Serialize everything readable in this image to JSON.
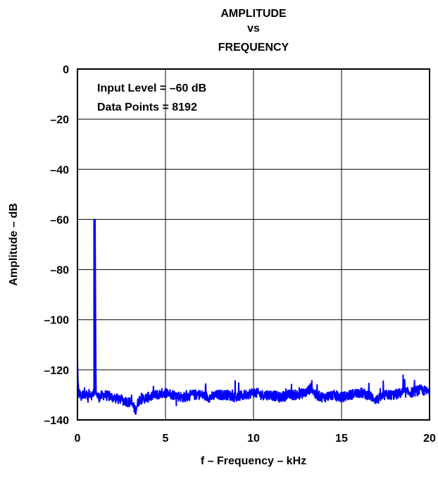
{
  "chart_data": {
    "type": "line",
    "title_lines": [
      "AMPLITUDE",
      "vs",
      "FREQUENCY"
    ],
    "xlabel": "f – Frequency – kHz",
    "ylabel": "Amplitude – dB",
    "xlim": [
      0,
      20
    ],
    "ylim": [
      -140,
      0
    ],
    "x_ticks": [
      0,
      5,
      10,
      15,
      20
    ],
    "x_tick_labels": [
      "0",
      "5",
      "10",
      "15",
      "20"
    ],
    "y_ticks": [
      0,
      -20,
      -40,
      -60,
      -80,
      -100,
      -120,
      -140
    ],
    "y_tick_labels": [
      "0",
      "–20",
      "–40",
      "–60",
      "–80",
      "–100",
      "–120",
      "–140"
    ],
    "grid": true,
    "annotations": [
      "Input Level = –60 dB",
      "Data Points = 8192"
    ],
    "series_color": "#0000ff",
    "series": [
      {
        "x": [
          0.0,
          0.02,
          0.05,
          0.1,
          0.15,
          0.2,
          0.3,
          0.4,
          0.5,
          0.6,
          0.7,
          0.8,
          0.9,
          0.95,
          1.0,
          1.05,
          1.1,
          1.2,
          1.5,
          2.0,
          2.5,
          3.0,
          3.3,
          3.5,
          4.0,
          4.5,
          5.0,
          5.5,
          6.0,
          6.5,
          7.0,
          7.5,
          8.0,
          8.5,
          9.0,
          9.5,
          10.0,
          10.5,
          11.0,
          11.5,
          12.0,
          12.5,
          13.0,
          13.3,
          13.5,
          14.0,
          14.5,
          15.0,
          15.5,
          16.0,
          16.5,
          17.0,
          17.5,
          18.0,
          18.5,
          19.0,
          19.5,
          20.0
        ],
        "y": [
          -116,
          -124,
          -128,
          -130,
          -129,
          -131,
          -130,
          -129,
          -130,
          -131,
          -129,
          -130,
          -130,
          -128,
          -60,
          -128,
          -130,
          -131,
          -130,
          -131,
          -132,
          -133,
          -136,
          -132,
          -131,
          -130,
          -129,
          -130,
          -131,
          -130,
          -130,
          -131,
          -130,
          -130,
          -131,
          -130,
          -129,
          -130,
          -130,
          -131,
          -130,
          -130,
          -129,
          -127,
          -130,
          -131,
          -130,
          -131,
          -130,
          -129,
          -130,
          -132,
          -130,
          -130,
          -129,
          -129,
          -128,
          -129
        ]
      }
    ]
  }
}
